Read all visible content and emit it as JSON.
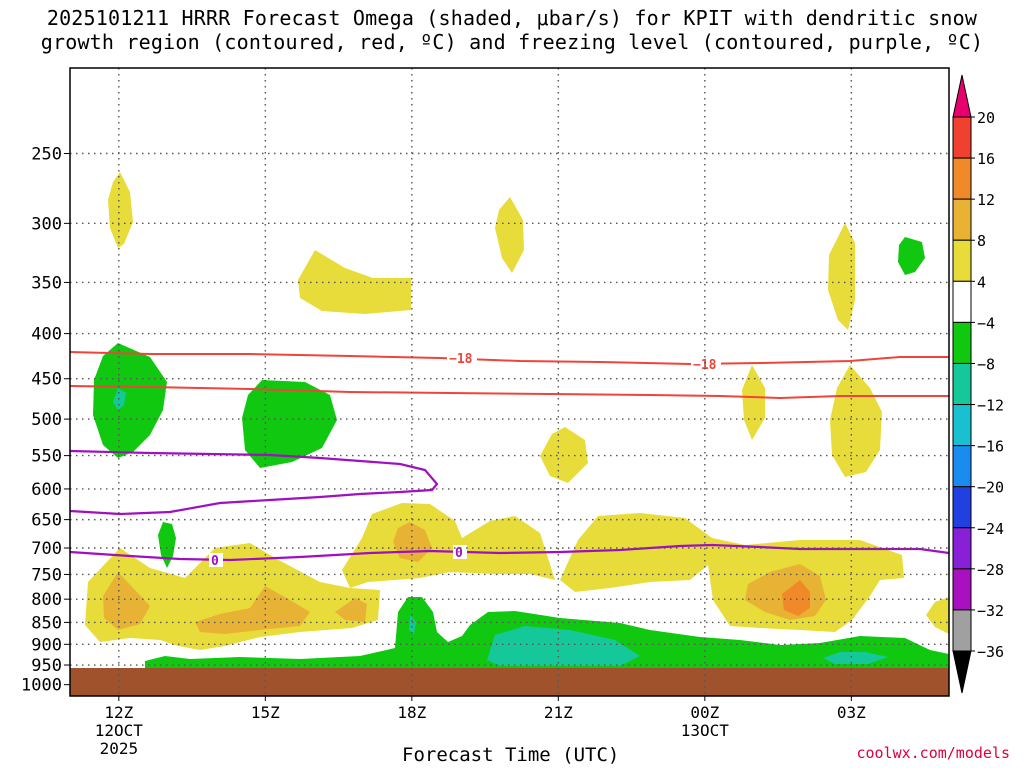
{
  "title_line1": "2025101211 HRRR Forecast Omega (shaded, μbar/s) for KPIT with dendritic snow",
  "title_line2": "growth region (contoured, red, ºC) and freezing level (contoured, purple, ºC)",
  "credit": "coolwx.com/models",
  "chart_data": {
    "type": "heatmap",
    "title": "2025101211 HRRR Forecast Omega (shaded, μbar/s) for KPIT with dendritic snow growth region (contoured, red, ºC) and freezing level (contoured, purple, ºC)",
    "xlabel": "Forecast Time (UTC)",
    "ylabel": "",
    "x_ticks": [
      {
        "label": "12Z",
        "sub1": "12OCT",
        "sub2": "2025",
        "hour": 0
      },
      {
        "label": "15Z",
        "sub1": "",
        "sub2": "",
        "hour": 3
      },
      {
        "label": "18Z",
        "sub1": "",
        "sub2": "",
        "hour": 6
      },
      {
        "label": "21Z",
        "sub1": "",
        "sub2": "",
        "hour": 9
      },
      {
        "label": "00Z",
        "sub1": "13OCT",
        "sub2": "",
        "hour": 12
      },
      {
        "label": "03Z",
        "sub1": "",
        "sub2": "",
        "hour": 15
      }
    ],
    "x_range_hours": [
      -1,
      17
    ],
    "y_ticks": [
      250,
      300,
      350,
      400,
      450,
      500,
      550,
      600,
      650,
      700,
      750,
      800,
      850,
      900,
      950,
      1000
    ],
    "y_range_mb": [
      200,
      1030
    ],
    "colorbar": {
      "levels": [
        "20",
        "16",
        "12",
        "8",
        "4",
        "−4",
        "−8",
        "−12",
        "−16",
        "−20",
        "−24",
        "−28",
        "−32",
        "−36"
      ],
      "colors": [
        "#e8006e",
        "#f04030",
        "#f08a28",
        "#e8b234",
        "#e8dc3a",
        "#ffffff",
        "#10c810",
        "#14c89a",
        "#18c0d0",
        "#1a8cf0",
        "#2040e0",
        "#8820d8",
        "#a810c0",
        "#a0a0a0",
        "#000000"
      ]
    },
    "contour_labels": {
      "snow_growth": "−18",
      "freezing": "0"
    },
    "ground_level_mb": 975,
    "line_colors": {
      "snow_growth": "#f0443a",
      "freezing": "#a010c0",
      "ground": "#a0522d"
    }
  }
}
